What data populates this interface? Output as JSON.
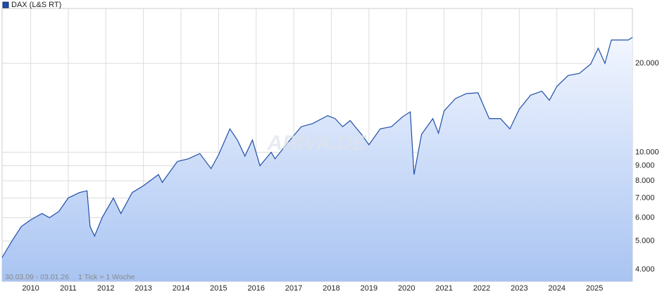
{
  "chart_data": {
    "type": "line",
    "log_scale_y": true,
    "grid": true,
    "legend": "top-left",
    "watermark": "ARIVA.DE",
    "date_range": "30.03.09 - 03.01.26",
    "tick_note": "1 Tick = 1 Woche",
    "xlim": [
      2009.24,
      2026.01
    ],
    "xticks": [
      2010,
      2011,
      2012,
      2013,
      2014,
      2015,
      2016,
      2017,
      2018,
      2019,
      2020,
      2021,
      2022,
      2023,
      2024,
      2025
    ],
    "ylim": [
      3650,
      30700
    ],
    "yticks": [
      {
        "value": 4000,
        "label": "4.000"
      },
      {
        "value": 5000,
        "label": "5.000"
      },
      {
        "value": 6000,
        "label": "6.000"
      },
      {
        "value": 7000,
        "label": "7.000"
      },
      {
        "value": 8000,
        "label": "8.000"
      },
      {
        "value": 9000,
        "label": "9.000"
      },
      {
        "value": 10000,
        "label": "10.000"
      },
      {
        "value": 20000,
        "label": "20.000"
      }
    ],
    "x": [
      2009.24,
      2009.5,
      2009.75,
      2010.0,
      2010.3,
      2010.5,
      2010.75,
      2011.0,
      2011.3,
      2011.5,
      2011.58,
      2011.7,
      2011.9,
      2012.2,
      2012.4,
      2012.7,
      2013.0,
      2013.4,
      2013.5,
      2013.9,
      2014.2,
      2014.5,
      2014.8,
      2015.0,
      2015.3,
      2015.5,
      2015.7,
      2015.9,
      2016.1,
      2016.4,
      2016.5,
      2016.9,
      2017.2,
      2017.5,
      2017.9,
      2018.1,
      2018.3,
      2018.5,
      2018.8,
      2019.0,
      2019.3,
      2019.6,
      2019.9,
      2020.1,
      2020.2,
      2020.4,
      2020.7,
      2020.85,
      2021.0,
      2021.3,
      2021.6,
      2021.9,
      2022.2,
      2022.5,
      2022.75,
      2023.0,
      2023.3,
      2023.6,
      2023.8,
      2024.0,
      2024.3,
      2024.6,
      2024.9,
      2025.1,
      2025.28,
      2025.45,
      2025.7,
      2025.9,
      2026.01
    ],
    "series": [
      {
        "name": "DAX (L&S RT)",
        "color": "#1f4fa8",
        "values": [
          4400,
          5000,
          5600,
          5900,
          6200,
          6000,
          6300,
          7000,
          7300,
          7400,
          5600,
          5200,
          6000,
          7000,
          6200,
          7300,
          7700,
          8400,
          7900,
          9300,
          9500,
          9900,
          8800,
          9800,
          12000,
          11000,
          9700,
          11000,
          9000,
          10000,
          9500,
          11000,
          12200,
          12500,
          13300,
          13000,
          12200,
          12800,
          11500,
          10600,
          12000,
          12200,
          13200,
          13700,
          8400,
          11500,
          13000,
          11600,
          13800,
          15200,
          15800,
          15900,
          13000,
          13000,
          12000,
          14000,
          15600,
          16100,
          15000,
          16700,
          18200,
          18500,
          19900,
          22500,
          20000,
          24000,
          24000,
          24000,
          24500
        ]
      }
    ]
  }
}
